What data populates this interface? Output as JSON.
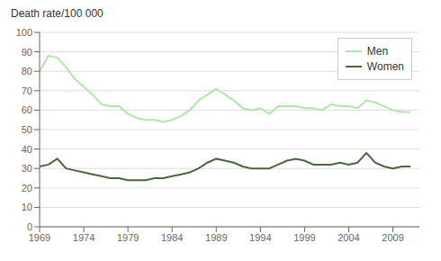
{
  "chart_data": {
    "type": "line",
    "ylabel": "Death rate/100 000",
    "x": [
      1969,
      1970,
      1971,
      1972,
      1973,
      1974,
      1975,
      1976,
      1977,
      1978,
      1979,
      1980,
      1981,
      1982,
      1983,
      1984,
      1985,
      1986,
      1987,
      1988,
      1989,
      1990,
      1991,
      1992,
      1993,
      1994,
      1995,
      1996,
      1997,
      1998,
      1999,
      2000,
      2001,
      2002,
      2003,
      2004,
      2005,
      2006,
      2007,
      2008,
      2009,
      2010,
      2011
    ],
    "series": [
      {
        "name": "Men",
        "color": "#aee8a8",
        "values": [
          80,
          88,
          87,
          82,
          76,
          72,
          68,
          63,
          62,
          62,
          58,
          56,
          55,
          55,
          54,
          55,
          57,
          60,
          65,
          68,
          71,
          68,
          65,
          61,
          60,
          61,
          58,
          62,
          62,
          62,
          61,
          61,
          60,
          63,
          62,
          62,
          61,
          65,
          64,
          62,
          60,
          59,
          59
        ]
      },
      {
        "name": "Women",
        "color": "#4a6741",
        "values": [
          31,
          32,
          35,
          30,
          29,
          28,
          27,
          26,
          25,
          25,
          24,
          24,
          24,
          25,
          25,
          26,
          27,
          28,
          30,
          33,
          35,
          34,
          33,
          31,
          30,
          30,
          30,
          32,
          34,
          35,
          34,
          32,
          32,
          32,
          33,
          32,
          33,
          38,
          33,
          31,
          30,
          31,
          31
        ]
      }
    ],
    "xlim": [
      1969,
      2012
    ],
    "xticks": [
      1969,
      1974,
      1979,
      1984,
      1989,
      1994,
      1999,
      2004,
      2009
    ],
    "ylim": [
      0,
      100
    ],
    "yticks": [
      0,
      10,
      20,
      30,
      40,
      50,
      60,
      70,
      80,
      90,
      100
    ],
    "grid": "y",
    "legend": "upper right"
  }
}
